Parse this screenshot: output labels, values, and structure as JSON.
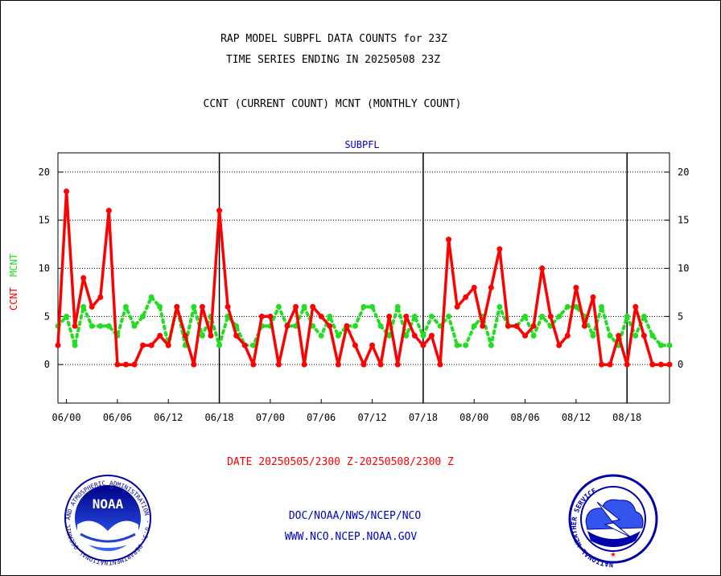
{
  "header": {
    "line1": "RAP MODEL SUBPFL DATA COUNTS for 23Z",
    "line2": "TIME SERIES ENDING IN 20250508 23Z",
    "line3": "CCNT (CURRENT COUNT) MCNT (MONTHLY COUNT)"
  },
  "footer": {
    "date_range": "DATE 20250505/2300 Z-20250508/2300 Z",
    "org_path": "DOC/NOAA/NWS/NCEP/NCO",
    "website": "WWW.NCO.NCEP.NOAA.GOV",
    "noaa_logo_text": "NOAA",
    "noaa_seal_ring_text": "NATIONAL OCEANIC AND ATMOSPHERIC ADMINISTRATION · U.S. DEPARTMENT OF COMMERCE",
    "nws_seal_ring_text": "NATIONAL WEATHER SERVICE"
  },
  "colors": {
    "ccnt": "#ff0000",
    "mcnt": "#22dd22",
    "text": "#000000",
    "blue": "#0000cc",
    "date": "#ff0000"
  },
  "chart_data": {
    "type": "line",
    "title": "SUBPFL",
    "ylabel_ccnt": "CCNT",
    "ylabel_mcnt": "MCNT",
    "ylim": [
      -4,
      22
    ],
    "yticks": [
      0,
      5,
      10,
      15,
      20
    ],
    "xlim": [
      -1,
      71
    ],
    "x_tick_positions": [
      0,
      6,
      12,
      18,
      24,
      30,
      36,
      42,
      48,
      54,
      60,
      66
    ],
    "x_tick_labels": [
      "06/00",
      "06/06",
      "06/12",
      "06/18",
      "07/00",
      "07/06",
      "07/12",
      "07/18",
      "08/00",
      "08/06",
      "08/12",
      "08/18"
    ],
    "day_dividers": [
      18,
      42,
      66
    ],
    "grid": "horizontal",
    "series": [
      {
        "name": "CCNT",
        "x": [
          -1,
          0,
          1,
          2,
          3,
          4,
          5,
          6,
          7,
          8,
          9,
          10,
          11,
          12,
          13,
          14,
          15,
          16,
          17,
          18,
          19,
          20,
          21,
          22,
          23,
          24,
          25,
          26,
          27,
          28,
          29,
          30,
          31,
          32,
          33,
          34,
          35,
          36,
          37,
          38,
          39,
          40,
          41,
          42,
          43,
          44,
          45,
          46,
          47,
          48,
          49,
          50,
          51,
          52,
          53,
          54,
          55,
          56,
          57,
          58,
          59,
          60,
          61,
          62,
          63,
          64,
          65,
          66,
          67,
          68,
          69,
          70,
          71
        ],
        "values": [
          2,
          18,
          4,
          9,
          6,
          7,
          16,
          0,
          0,
          0,
          2,
          2,
          3,
          2,
          6,
          3,
          0,
          6,
          3,
          16,
          6,
          3,
          2,
          0,
          5,
          5,
          0,
          4,
          6,
          0,
          6,
          5,
          4,
          0,
          4,
          2,
          0,
          2,
          0,
          5,
          0,
          5,
          3,
          2,
          3,
          0,
          13,
          6,
          7,
          8,
          4,
          8,
          12,
          4,
          4,
          3,
          4,
          10,
          5,
          2,
          3,
          8,
          4,
          7,
          0,
          0,
          3,
          0,
          6,
          3,
          0,
          0,
          0
        ]
      },
      {
        "name": "MCNT",
        "x": [
          -1,
          0,
          1,
          2,
          3,
          4,
          5,
          6,
          7,
          8,
          9,
          10,
          11,
          12,
          13,
          14,
          15,
          16,
          17,
          18,
          19,
          20,
          21,
          22,
          23,
          24,
          25,
          26,
          27,
          28,
          29,
          30,
          31,
          32,
          33,
          34,
          35,
          36,
          37,
          38,
          39,
          40,
          41,
          42,
          43,
          44,
          45,
          46,
          47,
          48,
          49,
          50,
          51,
          52,
          53,
          54,
          55,
          56,
          57,
          58,
          59,
          60,
          61,
          62,
          63,
          64,
          65,
          66,
          67,
          68,
          69,
          70,
          71
        ],
        "values": [
          4,
          5,
          2,
          6,
          4,
          4,
          4,
          3,
          6,
          4,
          5,
          7,
          6,
          2,
          6,
          2,
          6,
          3,
          5,
          2,
          5,
          4,
          2,
          2,
          4,
          4,
          6,
          4,
          4,
          6,
          4,
          3,
          5,
          3,
          4,
          4,
          6,
          6,
          4,
          3,
          6,
          3,
          5,
          3,
          5,
          4,
          5,
          2,
          2,
          4,
          5,
          2,
          6,
          4,
          4,
          5,
          3,
          5,
          4,
          5,
          6,
          6,
          5,
          3,
          6,
          3,
          2,
          5,
          3,
          5,
          3,
          2,
          2
        ]
      }
    ]
  }
}
